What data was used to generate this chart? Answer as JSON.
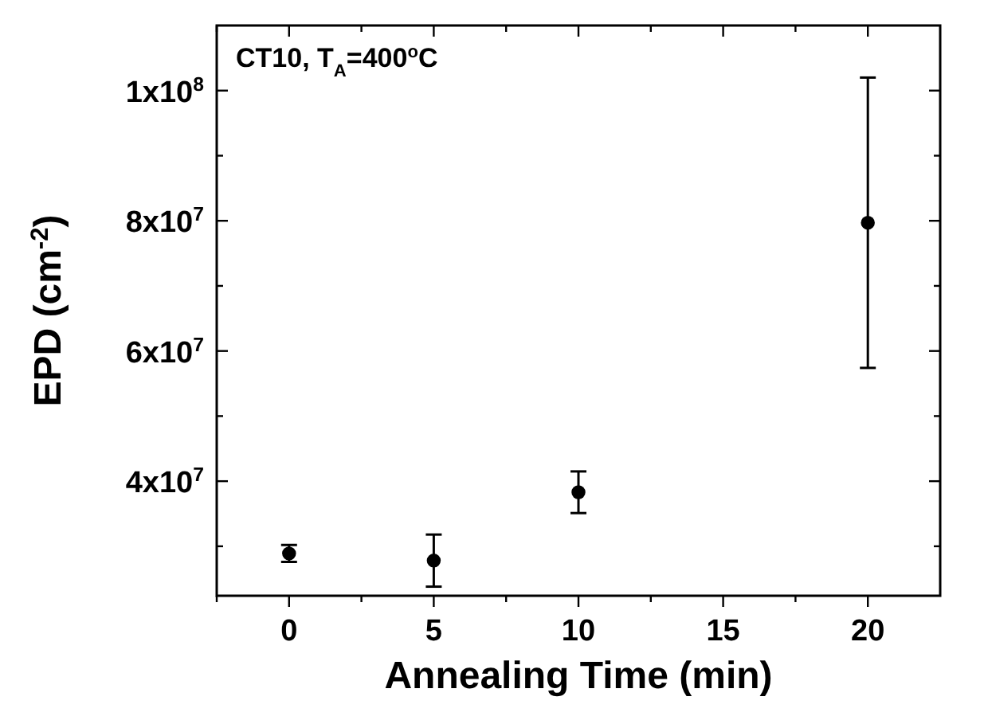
{
  "chart_data": {
    "type": "scatter",
    "xlabel": "Annealing Time (min)",
    "ylabel": "EPD (cm$^{-2}$)",
    "annotations": [
      "CT10, T$_{A}$=400$^{o}$C"
    ],
    "series": [
      {
        "color": "#000000",
        "x": [
          0,
          5,
          10,
          20
        ],
        "values": [
          28900000,
          27800000,
          38300000,
          79700000
        ],
        "errors": [
          [
            27600000,
            30200000
          ],
          [
            23800000,
            31800000
          ],
          [
            35100000,
            41500000
          ],
          [
            57400000,
            102000000
          ]
        ]
      }
    ],
    "marker": "circle",
    "xlim": [
      -2.5,
      22.5
    ],
    "xticks": [
      {
        "value": -2.5,
        "label": null
      },
      0,
      {
        "value": 2.5,
        "label": null
      },
      5,
      {
        "value": 7.5,
        "label": null
      },
      10,
      {
        "value": 12.5,
        "label": null
      },
      15,
      {
        "value": 17.5,
        "label": null
      },
      20
    ],
    "ylim": [
      22400000,
      110000000
    ],
    "yticks": [
      {
        "value": 30000000,
        "label": null
      },
      {
        "value": 40000000,
        "label": "4x10$^{7}$"
      },
      {
        "value": 50000000,
        "label": null
      },
      {
        "value": 60000000,
        "label": "6x10$^{7}$"
      },
      {
        "value": 70000000,
        "label": null
      },
      {
        "value": 80000000,
        "label": "8x10$^{7}$"
      },
      {
        "value": 90000000,
        "label": null
      },
      {
        "value": 100000000,
        "label": "1x10$^{8}$"
      }
    ],
    "grid": false
  }
}
